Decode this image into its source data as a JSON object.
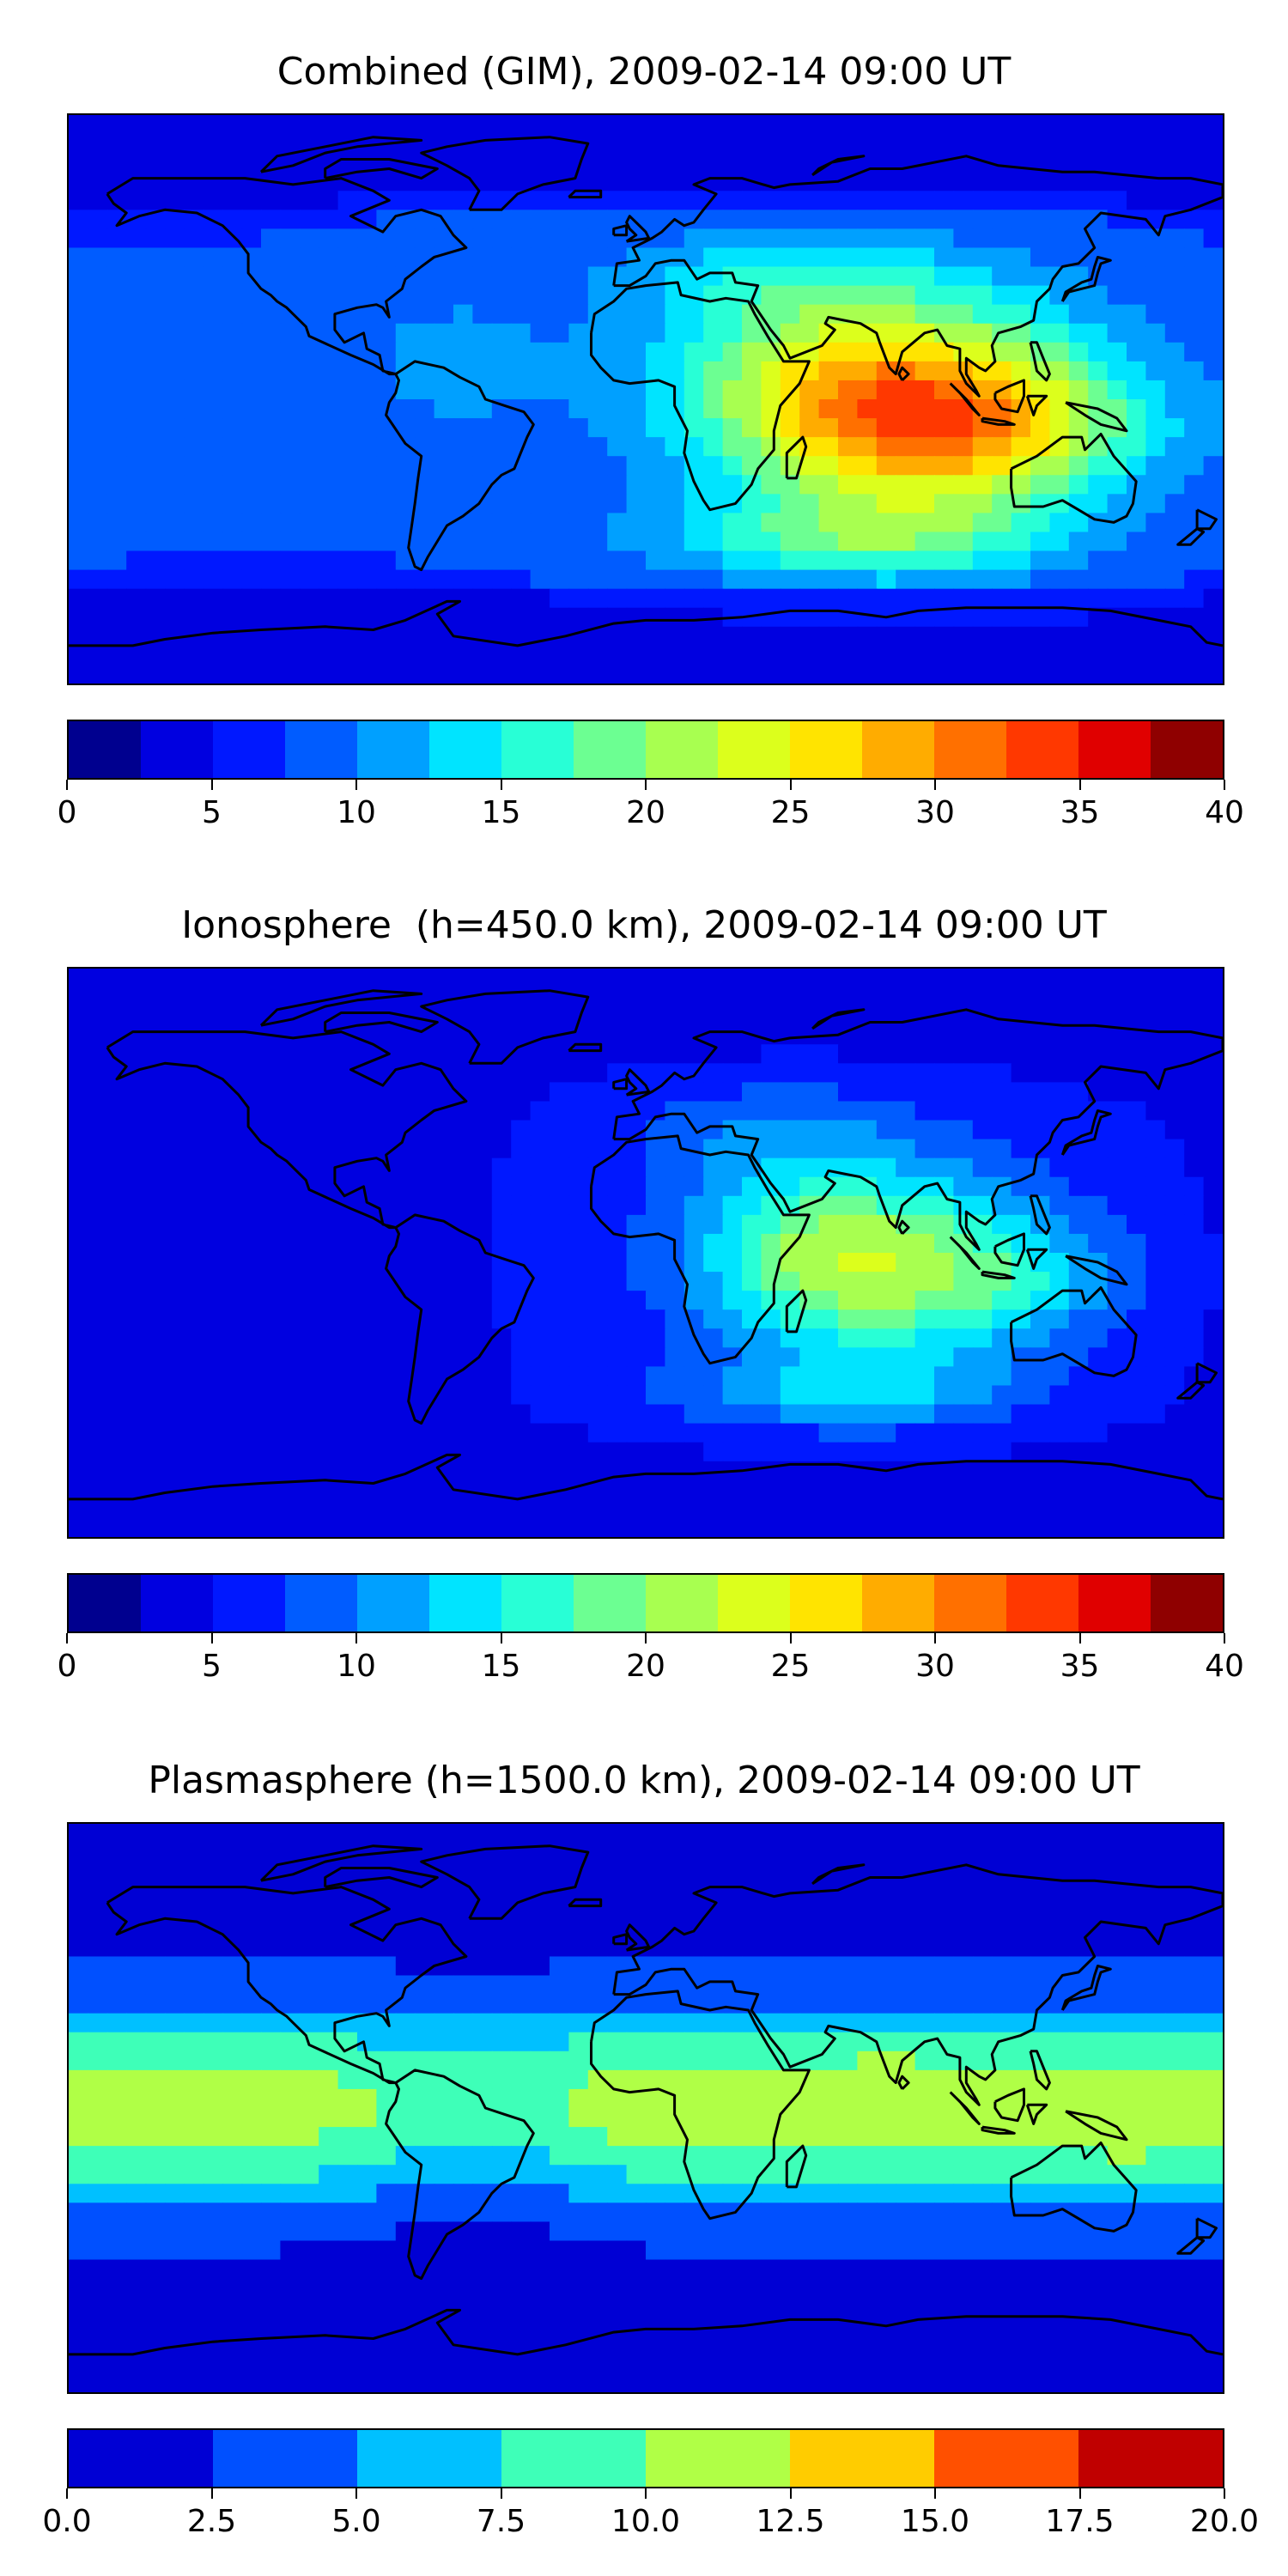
{
  "panels": [
    {
      "title": "Combined (GIM), 2009-02-14 09:00 UT",
      "field": "combined",
      "colorbar": {
        "colors": [
          "#00008f",
          "#0000e0",
          "#0018ff",
          "#005cff",
          "#00a0ff",
          "#00e4ff",
          "#28ffd6",
          "#6cff92",
          "#a8ff50",
          "#dcff1c",
          "#ffe400",
          "#ffac00",
          "#ff7000",
          "#ff3800",
          "#e00000",
          "#8f0000"
        ],
        "ticks": [
          "0",
          "5",
          "10",
          "15",
          "20",
          "25",
          "30",
          "35",
          "40"
        ],
        "range": [
          0,
          40
        ]
      }
    },
    {
      "title": "Ionosphere  (h=450.0 km), 2009-02-14 09:00 UT",
      "field": "ionosphere",
      "colorbar": {
        "colors": [
          "#00008f",
          "#0000e0",
          "#0018ff",
          "#005cff",
          "#00a0ff",
          "#00e4ff",
          "#28ffd6",
          "#6cff92",
          "#a8ff50",
          "#dcff1c",
          "#ffe400",
          "#ffac00",
          "#ff7000",
          "#ff3800",
          "#e00000",
          "#8f0000"
        ],
        "ticks": [
          "0",
          "5",
          "10",
          "15",
          "20",
          "25",
          "30",
          "35",
          "40"
        ],
        "range": [
          0,
          40
        ]
      }
    },
    {
      "title": "Plasmasphere (h=1500.0 km), 2009-02-14 09:00 UT",
      "field": "plasmasphere",
      "colorbar": {
        "colors": [
          "#0000d4",
          "#0050ff",
          "#00c0ff",
          "#3effb8",
          "#b0ff46",
          "#ffcc00",
          "#ff5000",
          "#c00000"
        ],
        "ticks": [
          "0.0",
          "2.5",
          "5.0",
          "7.5",
          "10.0",
          "12.5",
          "15.0",
          "17.5",
          "20.0"
        ],
        "range": [
          0,
          20
        ]
      }
    }
  ]
}
